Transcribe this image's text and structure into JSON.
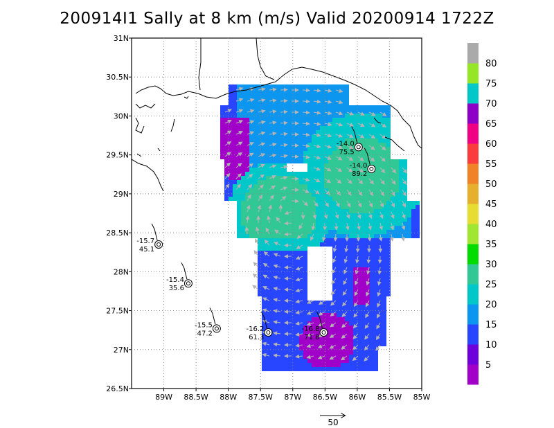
{
  "title": "200914I1 Sally at 8 km (m/s) Valid 20200914  1722Z",
  "lat_labels": [
    "31N",
    "30.5N",
    "30N",
    "29.5N",
    "29N",
    "28.5N",
    "28N",
    "27.5N",
    "27N",
    "26.5N"
  ],
  "lat_values": [
    31,
    30.5,
    30,
    29.5,
    29,
    28.5,
    28,
    27.5,
    27,
    26.5
  ],
  "lon_labels": [
    "89W",
    "88.5W",
    "88W",
    "87.5W",
    "87W",
    "86.5W",
    "86W",
    "85.5W",
    "85W"
  ],
  "lon_values": [
    -89,
    -88.5,
    -88,
    -87.5,
    -87,
    -86.5,
    -86,
    -85.5,
    -85
  ],
  "colorbar": {
    "labels": [
      "5",
      "10",
      "15",
      "20",
      "25",
      "30",
      "35",
      "40",
      "45",
      "50",
      "55",
      "60",
      "65",
      "70",
      "75",
      "80"
    ],
    "colors": [
      "#a000c8",
      "#6e00dc",
      "#2846ff",
      "#0c96f0",
      "#00c8c8",
      "#32c896",
      "#00dc00",
      "#a0e632",
      "#e6dc32",
      "#e6af2d",
      "#f08228",
      "#fa3c3c",
      "#f00082",
      "#8c00c8",
      "#00c8c8",
      "#96e628",
      "#aaaaaa"
    ]
  },
  "reference_vector": {
    "label": "50"
  },
  "observations": [
    {
      "top": "-15.7",
      "bottom": "45.1",
      "lon": -89.08,
      "lat": 28.35
    },
    {
      "top": "-15.4",
      "bottom": "35.6",
      "lon": -88.62,
      "lat": 27.85
    },
    {
      "top": "-15.5",
      "bottom": "47.2",
      "lon": -88.18,
      "lat": 27.27
    },
    {
      "top": "-16.2",
      "bottom": "61.3",
      "lon": -87.38,
      "lat": 27.22
    },
    {
      "top": "-16.8",
      "bottom": "71.8",
      "lon": -86.52,
      "lat": 27.22
    },
    {
      "top": "-14.0",
      "bottom": "75.5",
      "lon": -85.98,
      "lat": 29.6
    },
    {
      "top": "-14.0",
      "bottom": "89.2",
      "lon": -85.78,
      "lat": 29.32
    }
  ]
}
